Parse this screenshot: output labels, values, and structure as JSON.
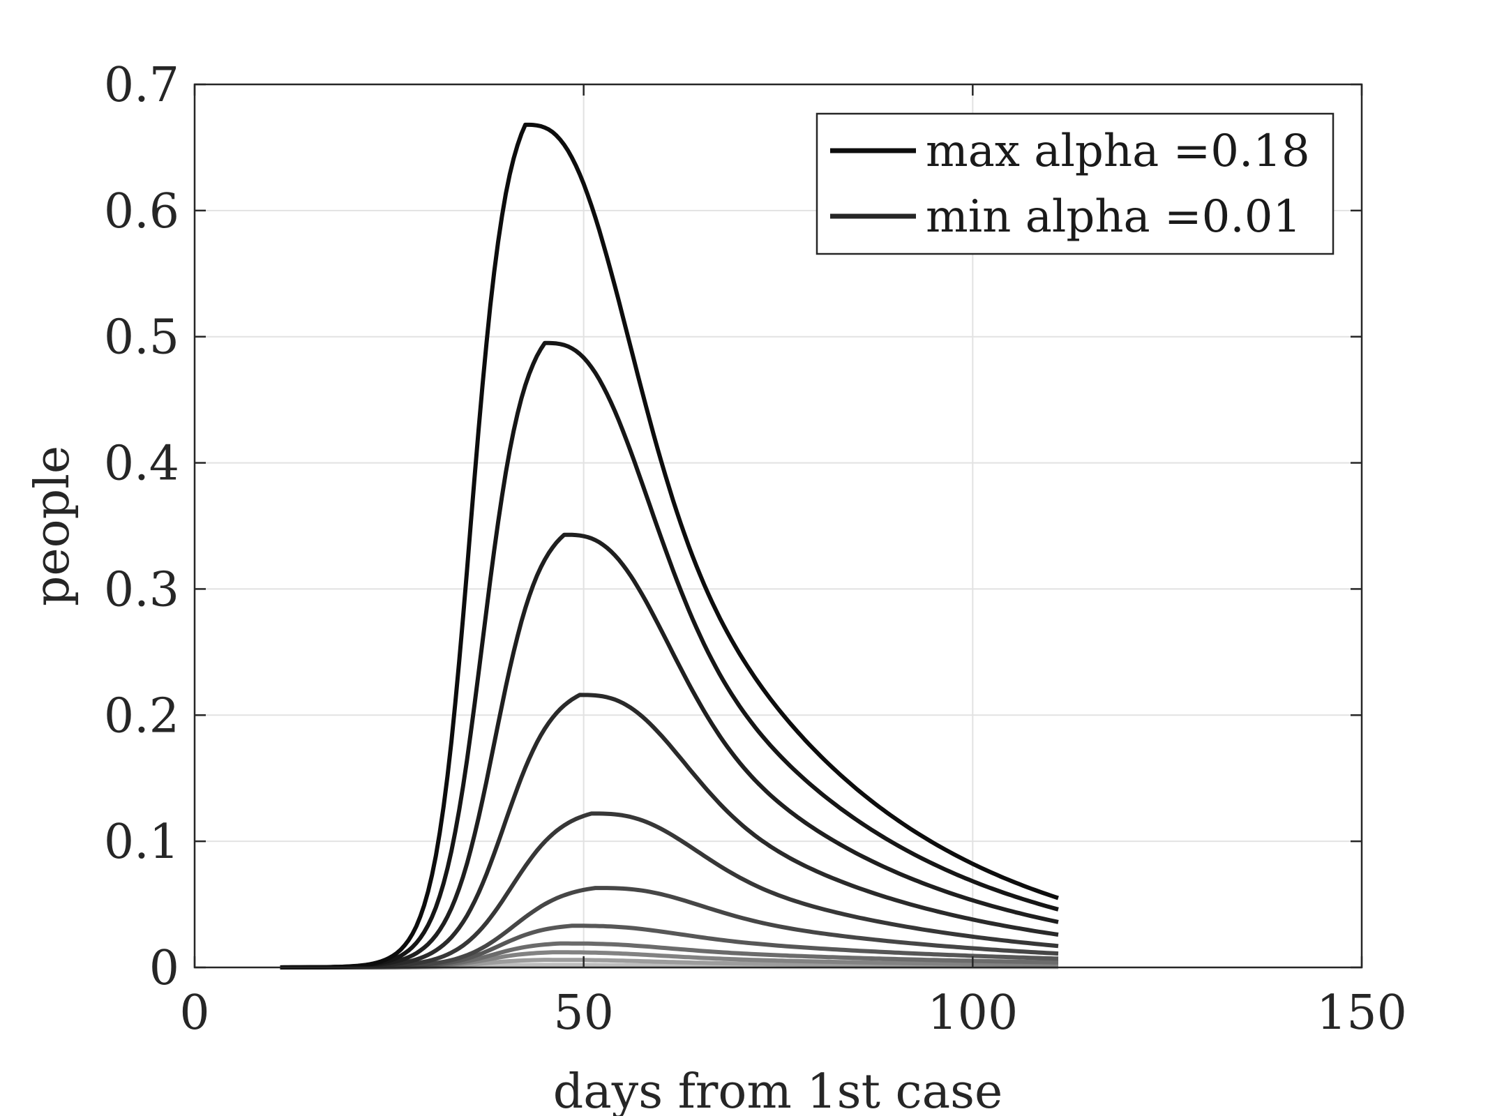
{
  "chart_data": {
    "type": "line",
    "xlabel": "days from 1st case",
    "ylabel": "people",
    "xlim": [
      0,
      150
    ],
    "ylim": [
      0,
      0.7
    ],
    "xticks": [
      0,
      50,
      100,
      150
    ],
    "yticks": [
      0,
      0.1,
      0.2,
      0.3,
      0.4,
      0.5,
      0.6,
      0.7
    ],
    "xtick_labels": [
      "0",
      "50",
      "100",
      "150"
    ],
    "ytick_labels": [
      "0",
      "0.1",
      "0.2",
      "0.3",
      "0.4",
      "0.5",
      "0.6",
      "0.7"
    ],
    "grid": true,
    "legend_position": "top-right",
    "legend": [
      {
        "label": "max alpha =0.18",
        "color": "#0d0d0d"
      },
      {
        "label": "min alpha =0.01",
        "color": "#262626"
      }
    ],
    "x_range": [
      11,
      111
    ],
    "onset_day": 24,
    "series": [
      {
        "color": "#0d0d0d",
        "peak_day": 42.5,
        "peak": 0.668,
        "end": 0.055
      },
      {
        "color": "#161616",
        "peak_day": 45.0,
        "peak": 0.495,
        "end": 0.046
      },
      {
        "color": "#1f1f1f",
        "peak_day": 47.5,
        "peak": 0.343,
        "end": 0.036
      },
      {
        "color": "#2a2a2a",
        "peak_day": 49.5,
        "peak": 0.216,
        "end": 0.026
      },
      {
        "color": "#373737",
        "peak_day": 51.0,
        "peak": 0.122,
        "end": 0.017
      },
      {
        "color": "#464646",
        "peak_day": 51.5,
        "peak": 0.063,
        "end": 0.011
      },
      {
        "color": "#575757",
        "peak_day": 48.5,
        "peak": 0.033,
        "end": 0.007
      },
      {
        "color": "#6b6b6b",
        "peak_day": 47.0,
        "peak": 0.019,
        "end": 0.004
      },
      {
        "color": "#828282",
        "peak_day": 46.0,
        "peak": 0.012,
        "end": 0.002
      },
      {
        "color": "#9c9c9c",
        "peak_day": 45.0,
        "peak": 0.006,
        "end": 0.001
      },
      {
        "color": "#bdbdbd",
        "peak_day": 44.0,
        "peak": 0.002,
        "end": 0.0005
      },
      {
        "color": "#dcdcdc",
        "peak_day": 43.0,
        "peak": 0.0005,
        "end": 0.0001
      }
    ]
  }
}
